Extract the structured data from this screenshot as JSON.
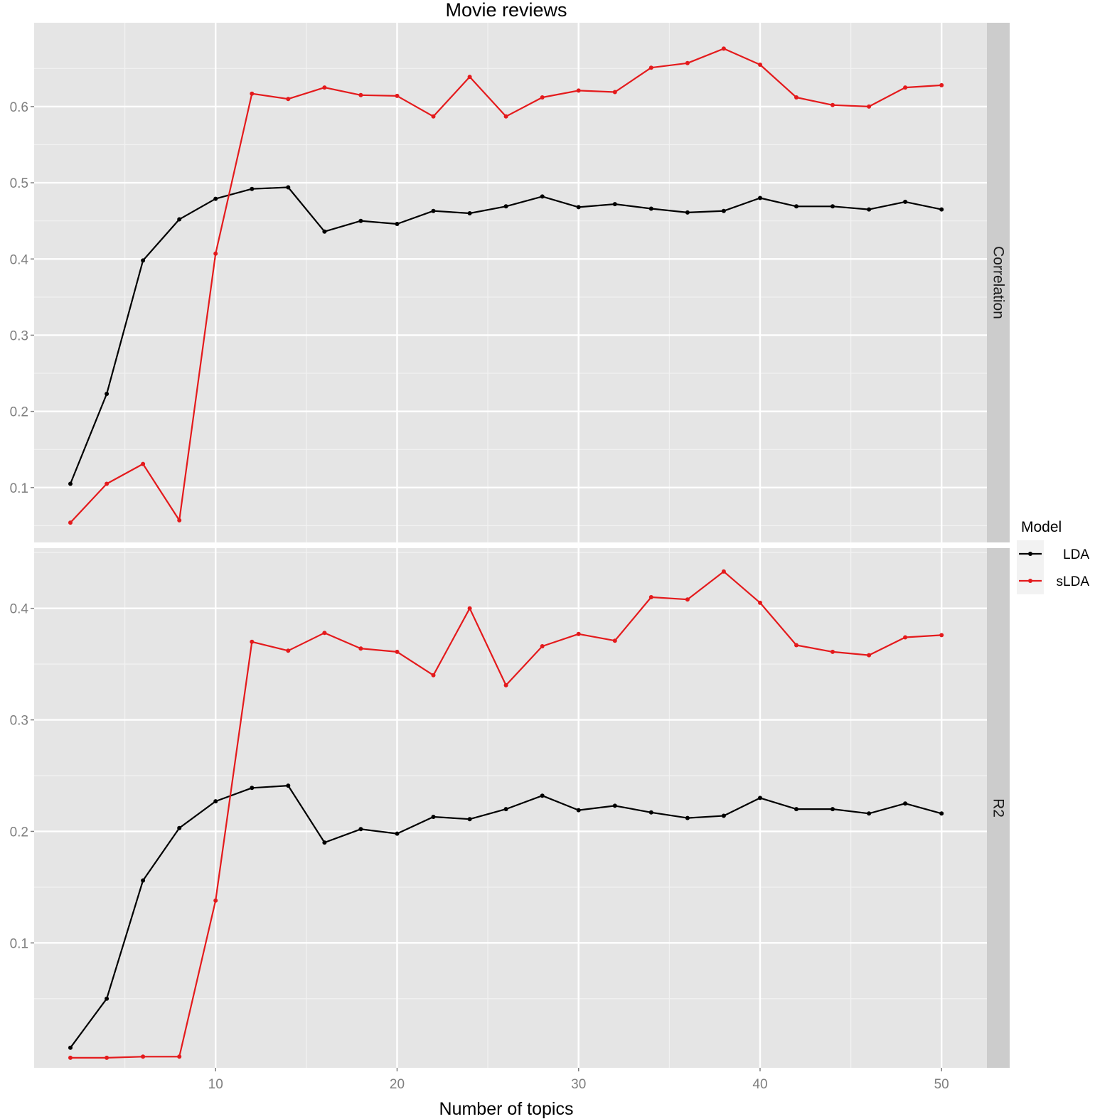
{
  "chart_data": {
    "type": "line",
    "title": "Movie reviews",
    "xlabel": "Number of topics",
    "ylabel": "",
    "xlim": [
      0,
      52.5
    ],
    "x_ticks": [
      10,
      20,
      30,
      40,
      50
    ],
    "x": [
      2,
      4,
      6,
      8,
      10,
      12,
      14,
      16,
      18,
      20,
      22,
      24,
      26,
      28,
      30,
      32,
      34,
      36,
      38,
      40,
      42,
      44,
      46,
      48,
      50
    ],
    "grid": true,
    "legend": {
      "title": "Model",
      "position": "right"
    },
    "colors": {
      "LDA": "#000000",
      "sLDA": "#e41a1c",
      "panel_bg": "#e5e5e5",
      "grid": "#ffffff",
      "strip_bg": "#cccccc"
    },
    "panels": [
      {
        "label": "Correlation",
        "ylim": [
          0.028,
          0.71
        ],
        "y_ticks": [
          0.1,
          0.2,
          0.3,
          0.4,
          0.5,
          0.6
        ],
        "series": [
          {
            "name": "LDA",
            "values": [
              0.105,
              0.223,
              0.398,
              0.452,
              0.479,
              0.492,
              0.494,
              0.436,
              0.45,
              0.446,
              0.463,
              0.46,
              0.469,
              0.482,
              0.468,
              0.472,
              0.466,
              0.461,
              0.463,
              0.48,
              0.469,
              0.469,
              0.465,
              0.475,
              0.465
            ]
          },
          {
            "name": "sLDA",
            "values": [
              0.054,
              0.105,
              0.131,
              0.057,
              0.407,
              0.617,
              0.61,
              0.625,
              0.615,
              0.614,
              0.587,
              0.639,
              0.587,
              0.612,
              0.621,
              0.619,
              0.651,
              0.657,
              0.676,
              0.655,
              0.612,
              0.602,
              0.6,
              0.625,
              0.628
            ]
          }
        ]
      },
      {
        "label": "R2",
        "ylim": [
          -0.012,
          0.454
        ],
        "y_ticks": [
          0.1,
          0.2,
          0.3,
          0.4
        ],
        "series": [
          {
            "name": "LDA",
            "values": [
              0.006,
              0.05,
              0.156,
              0.203,
              0.227,
              0.239,
              0.241,
              0.19,
              0.202,
              0.198,
              0.213,
              0.211,
              0.22,
              0.232,
              0.219,
              0.223,
              0.217,
              0.212,
              0.214,
              0.23,
              0.22,
              0.22,
              0.216,
              0.225,
              0.216
            ]
          },
          {
            "name": "sLDA",
            "values": [
              -0.003,
              -0.003,
              -0.002,
              -0.002,
              0.138,
              0.37,
              0.362,
              0.378,
              0.364,
              0.361,
              0.34,
              0.4,
              0.331,
              0.366,
              0.377,
              0.371,
              0.41,
              0.408,
              0.433,
              0.405,
              0.367,
              0.361,
              0.358,
              0.374,
              0.376
            ]
          }
        ]
      }
    ]
  }
}
